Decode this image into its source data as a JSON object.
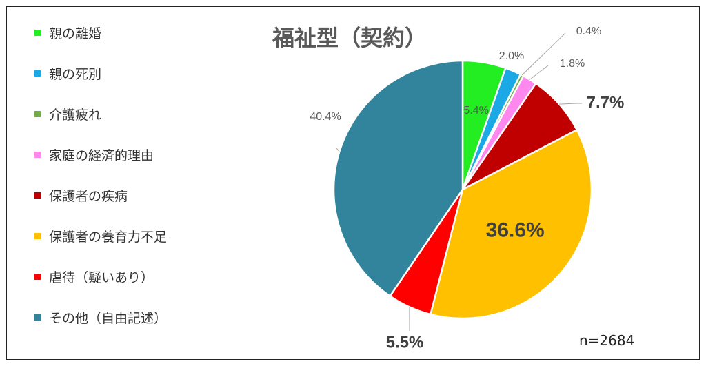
{
  "chart_data": {
    "type": "pie",
    "title": "福祉型（契約）",
    "note": "n=2684",
    "legend_position": "left",
    "slices": [
      {
        "label": "親の離婚",
        "value": 5.4,
        "display": "5.4%",
        "color": "#22ee22"
      },
      {
        "label": "親の死別",
        "value": 2.0,
        "display": "2.0%",
        "color": "#1aa9e4"
      },
      {
        "label": "介護疲れ",
        "value": 0.4,
        "display": "0.4%",
        "color": "#70ad47"
      },
      {
        "label": "家庭の経済的理由",
        "value": 1.8,
        "display": "1.8%",
        "color": "#ff88ee"
      },
      {
        "label": "保護者の疾病",
        "value": 7.7,
        "display": "7.7%",
        "color": "#c00000"
      },
      {
        "label": "保護者の養育力不足",
        "value": 36.6,
        "display": "36.6%",
        "color": "#ffc000"
      },
      {
        "label": "虐待（疑いあり）",
        "value": 5.5,
        "display": "5.5%",
        "color": "#ff0000"
      },
      {
        "label": "その他（自由記述）",
        "value": 40.4,
        "display": "40.4%",
        "color": "#31849b"
      }
    ]
  }
}
